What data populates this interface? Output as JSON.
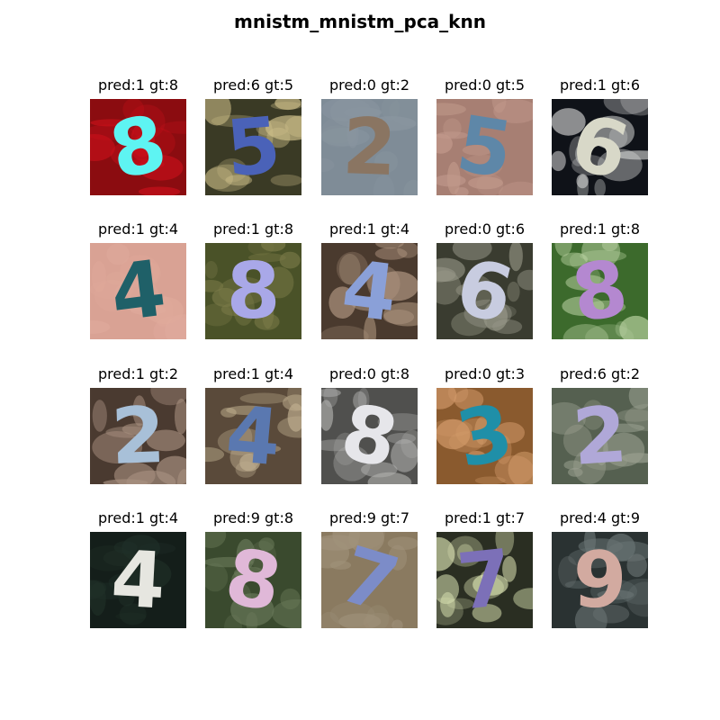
{
  "figure": {
    "title": "mnistm_mnistm_pca_knn"
  },
  "samples": [
    {
      "caption": "pred:1 gt:8",
      "digit": "8",
      "bg": "#8b0c10",
      "bg2": "#c8101a",
      "fg": "#5ef4f2"
    },
    {
      "caption": "pred:6 gt:5",
      "digit": "5",
      "bg": "#3a3a25",
      "bg2": "#cfc08a",
      "fg": "#4a62b8"
    },
    {
      "caption": "pred:0 gt:2",
      "digit": "2",
      "bg": "#7f8c97",
      "bg2": "#8a96a0",
      "fg": "#8a7562"
    },
    {
      "caption": "pred:0 gt:5",
      "digit": "5",
      "bg": "#a77f73",
      "bg2": "#c29a8c",
      "fg": "#5e87a8"
    },
    {
      "caption": "pred:1 gt:6",
      "digit": "6",
      "bg": "#0f1218",
      "bg2": "#cfd0cf",
      "fg": "#d8d8c8"
    },
    {
      "caption": "pred:1 gt:4",
      "digit": "4",
      "bg": "#d9a294",
      "bg2": "#e0aa9c",
      "fg": "#1f6068"
    },
    {
      "caption": "pred:1 gt:8",
      "digit": "8",
      "bg": "#4a5228",
      "bg2": "#7a7a48",
      "fg": "#a9a8e8"
    },
    {
      "caption": "pred:1 gt:4",
      "digit": "4",
      "bg": "#4a3a2e",
      "bg2": "#b49a84",
      "fg": "#8aa0d8"
    },
    {
      "caption": "pred:0 gt:6",
      "digit": "6",
      "bg": "#3a3c30",
      "bg2": "#9a9a8a",
      "fg": "#c8cce0"
    },
    {
      "caption": "pred:1 gt:8",
      "digit": "8",
      "bg": "#3c6a2c",
      "bg2": "#b8d0a0",
      "fg": "#b488d0"
    },
    {
      "caption": "pred:1 gt:2",
      "digit": "2",
      "bg": "#4a3a30",
      "bg2": "#a89080",
      "fg": "#a8c0d8"
    },
    {
      "caption": "pred:1 gt:4",
      "digit": "4",
      "bg": "#5a4a3a",
      "bg2": "#c0b090",
      "fg": "#5a78b0"
    },
    {
      "caption": "pred:0 gt:8",
      "digit": "8",
      "bg": "#50504e",
      "bg2": "#b0b0ae",
      "fg": "#e6e6ea"
    },
    {
      "caption": "pred:0 gt:3",
      "digit": "3",
      "bg": "#8a5a2e",
      "bg2": "#d29a6a",
      "fg": "#1f8fa8"
    },
    {
      "caption": "pred:6 gt:2",
      "digit": "2",
      "bg": "#556050",
      "bg2": "#9aa090",
      "fg": "#b0a8d8"
    },
    {
      "caption": "pred:1 gt:4",
      "digit": "4",
      "bg": "#141e1a",
      "bg2": "#203028",
      "fg": "#e6e6e0"
    },
    {
      "caption": "pred:9 gt:8",
      "digit": "8",
      "bg": "#3a4a2e",
      "bg2": "#6a7a5a",
      "fg": "#e0b8d8"
    },
    {
      "caption": "pred:9 gt:7",
      "digit": "7",
      "bg": "#8a7a60",
      "bg2": "#a0927a",
      "fg": "#7c8cc8"
    },
    {
      "caption": "pred:1 gt:7",
      "digit": "7",
      "bg": "#2a2e22",
      "bg2": "#d8e0b0",
      "fg": "#7c70b8"
    },
    {
      "caption": "pred:4 gt:9",
      "digit": "9",
      "bg": "#2a3232",
      "bg2": "#6a7474",
      "fg": "#d2aaa0"
    }
  ]
}
